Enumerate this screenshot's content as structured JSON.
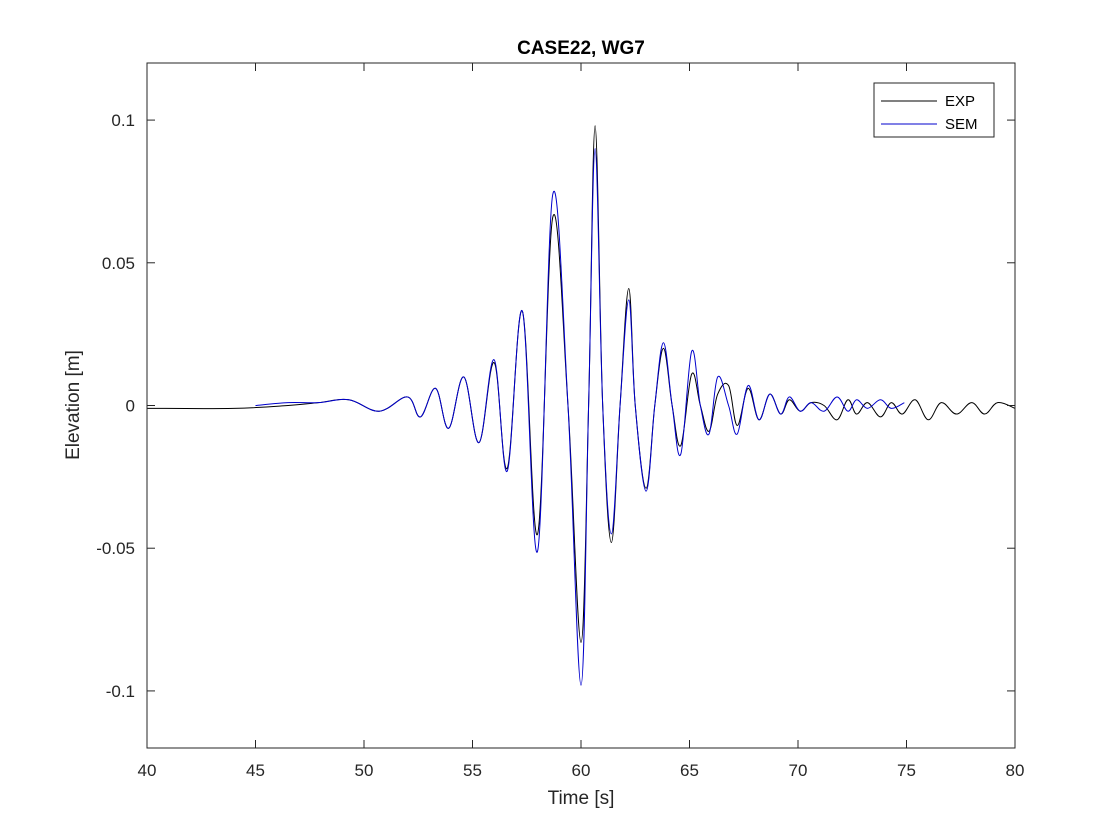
{
  "chart_data": {
    "type": "line",
    "title": "CASE22, WG7",
    "xlabel": "Time [s]",
    "ylabel": "Elevation [m]",
    "xlim": [
      40,
      80
    ],
    "ylim": [
      -0.12,
      0.12
    ],
    "xticks": [
      40,
      45,
      50,
      55,
      60,
      65,
      70,
      75,
      80
    ],
    "xtick_labels": [
      "40",
      "45",
      "50",
      "55",
      "60",
      "65",
      "70",
      "75",
      "80"
    ],
    "yticks": [
      -0.1,
      -0.05,
      0,
      0.05,
      0.1
    ],
    "ytick_labels": [
      "-0.1",
      "-0.05",
      "0",
      "0.05",
      "0.1"
    ],
    "grid": false,
    "legend_position": "top-right",
    "series": [
      {
        "name": "EXP",
        "color": "#000000",
        "x": [
          40.0,
          44.0,
          46.5,
          47.9,
          49.3,
          50.7,
          52.0,
          52.6,
          53.3,
          53.9,
          54.6,
          55.3,
          56.0,
          56.6,
          57.3,
          58.0,
          58.7,
          59.4,
          60.0,
          60.35,
          60.65,
          61.0,
          61.4,
          61.8,
          62.2,
          62.5,
          63.0,
          63.4,
          63.8,
          64.2,
          64.6,
          65.1,
          65.5,
          65.9,
          66.3,
          66.8,
          67.2,
          67.7,
          68.2,
          68.7,
          69.2,
          69.6,
          70.1,
          70.6,
          71.2,
          71.8,
          72.3,
          72.7,
          73.2,
          73.8,
          74.3,
          74.8,
          75.4,
          76.0,
          76.6,
          77.3,
          78.0,
          78.6,
          79.2,
          80.0
        ],
        "y": [
          -0.001,
          -0.001,
          0.0,
          0.001,
          0.002,
          -0.002,
          0.003,
          -0.004,
          0.006,
          -0.008,
          0.01,
          -0.013,
          0.015,
          -0.022,
          0.033,
          -0.045,
          0.066,
          0.0,
          -0.083,
          0.0,
          0.098,
          0.0,
          -0.048,
          0.0,
          0.041,
          0.0,
          -0.029,
          0.0,
          0.02,
          0.0,
          -0.014,
          0.011,
          0.0,
          -0.009,
          0.004,
          0.007,
          -0.007,
          0.006,
          -0.005,
          0.004,
          -0.003,
          0.002,
          -0.002,
          0.001,
          0.0,
          -0.005,
          0.002,
          -0.003,
          0.001,
          -0.004,
          0.001,
          -0.003,
          0.002,
          -0.005,
          0.001,
          -0.003,
          0.001,
          -0.003,
          0.001,
          -0.001
        ]
      },
      {
        "name": "SEM",
        "color": "#0000cc",
        "x": [
          45.0,
          46.5,
          47.9,
          49.3,
          50.7,
          52.0,
          52.6,
          53.3,
          53.9,
          54.6,
          55.3,
          56.0,
          56.6,
          57.3,
          58.0,
          58.7,
          59.4,
          60.0,
          60.35,
          60.65,
          61.0,
          61.4,
          61.8,
          62.2,
          62.5,
          63.0,
          63.4,
          63.8,
          64.2,
          64.6,
          65.1,
          65.5,
          65.9,
          66.3,
          66.8,
          67.2,
          67.7,
          68.2,
          68.7,
          69.2,
          69.6,
          70.1,
          70.6,
          71.2,
          71.8,
          72.3,
          72.7,
          73.2,
          73.8,
          74.3,
          74.9
        ],
        "y": [
          0.0,
          0.001,
          0.001,
          0.002,
          -0.002,
          0.003,
          -0.004,
          0.006,
          -0.008,
          0.01,
          -0.013,
          0.016,
          -0.023,
          0.033,
          -0.051,
          0.074,
          0.0,
          -0.098,
          0.0,
          0.09,
          0.0,
          -0.045,
          0.0,
          0.037,
          0.0,
          -0.03,
          0.0,
          0.022,
          0.0,
          -0.017,
          0.019,
          0.0,
          -0.01,
          0.01,
          0.0,
          -0.01,
          0.007,
          -0.005,
          0.004,
          -0.003,
          0.003,
          -0.002,
          0.001,
          -0.002,
          0.003,
          -0.002,
          0.002,
          -0.001,
          0.002,
          -0.001,
          0.001
        ]
      }
    ]
  }
}
